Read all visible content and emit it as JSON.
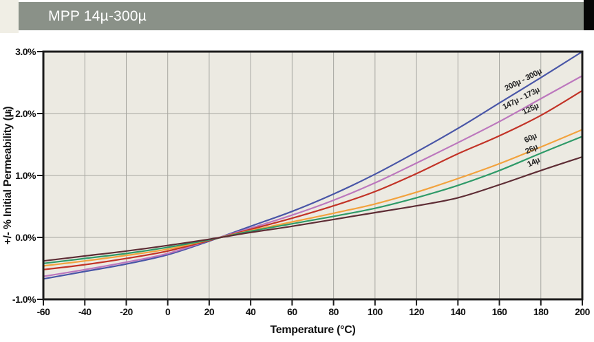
{
  "header": {
    "title": "MPP 14µ-300µ",
    "bar_color": "#8A9188",
    "strip_color": "#F0EEE5",
    "corner_color": "#060606",
    "text_color": "#FFFFFF"
  },
  "chart_data": {
    "type": "line",
    "title": "MPP 14µ-300µ",
    "xlabel": "Temperature (°C)",
    "ylabel": "+/- % Initial Permeability (µᵢ)",
    "xlim": [
      -60,
      200
    ],
    "ylim": [
      -1,
      3
    ],
    "grid": true,
    "legend_position": "inline-curve-labels",
    "plot_bg": "#ECEAE2",
    "grid_color": "#A6A6A0",
    "axis_color": "#1B1B1B",
    "tick_text_color": "#111111",
    "x_ticks": [
      -60,
      -40,
      -20,
      0,
      20,
      40,
      60,
      80,
      100,
      120,
      140,
      160,
      180,
      200
    ],
    "y_ticks": [
      {
        "value": 3,
        "label": "3.0%"
      },
      {
        "value": 2,
        "label": "2.0%"
      },
      {
        "value": 1,
        "label": "1.0%"
      },
      {
        "value": 0,
        "label": "0.0%"
      },
      {
        "value": -1,
        "label": "-1.0%"
      }
    ],
    "x": [
      -60,
      -40,
      -20,
      0,
      20,
      40,
      60,
      80,
      100,
      120,
      140,
      160,
      180,
      200
    ],
    "series": [
      {
        "name": "200µ - 300µ",
        "color": "#4956A7",
        "values": [
          -0.67,
          -0.55,
          -0.43,
          -0.28,
          -0.06,
          0.18,
          0.42,
          0.7,
          1.02,
          1.38,
          1.76,
          2.17,
          2.58,
          3.0
        ],
        "label": {
          "t": 172,
          "v": 2.51,
          "rot": -27
        }
      },
      {
        "name": "147µ - 173µ",
        "color": "#BC77BD",
        "values": [
          -0.63,
          -0.52,
          -0.4,
          -0.26,
          -0.05,
          0.15,
          0.36,
          0.6,
          0.88,
          1.2,
          1.53,
          1.87,
          2.24,
          2.61
        ],
        "label": {
          "t": 171,
          "v": 2.21,
          "rot": -27
        }
      },
      {
        "name": "125µ",
        "color": "#C23327",
        "values": [
          -0.52,
          -0.44,
          -0.34,
          -0.22,
          -0.05,
          0.13,
          0.31,
          0.51,
          0.74,
          1.03,
          1.35,
          1.64,
          1.97,
          2.37
        ],
        "label": {
          "t": 175.5,
          "v": 2.04,
          "rot": -25
        }
      },
      {
        "name": "60µ",
        "color": "#F2A23D",
        "values": [
          -0.46,
          -0.38,
          -0.29,
          -0.19,
          -0.04,
          0.11,
          0.25,
          0.39,
          0.54,
          0.73,
          0.95,
          1.19,
          1.46,
          1.74
        ],
        "label": {
          "t": 175.5,
          "v": 1.57,
          "rot": -25
        }
      },
      {
        "name": "26µ",
        "color": "#2E9A68",
        "values": [
          -0.42,
          -0.34,
          -0.26,
          -0.16,
          -0.04,
          0.1,
          0.22,
          0.34,
          0.47,
          0.64,
          0.84,
          1.08,
          1.36,
          1.63
        ],
        "label": {
          "t": 176,
          "v": 1.39,
          "rot": -25
        }
      },
      {
        "name": "14µ",
        "color": "#5E2D35",
        "values": [
          -0.38,
          -0.3,
          -0.22,
          -0.13,
          -0.03,
          0.08,
          0.18,
          0.29,
          0.4,
          0.51,
          0.64,
          0.85,
          1.08,
          1.3
        ],
        "label": {
          "t": 177,
          "v": 1.18,
          "rot": -25
        }
      }
    ]
  }
}
